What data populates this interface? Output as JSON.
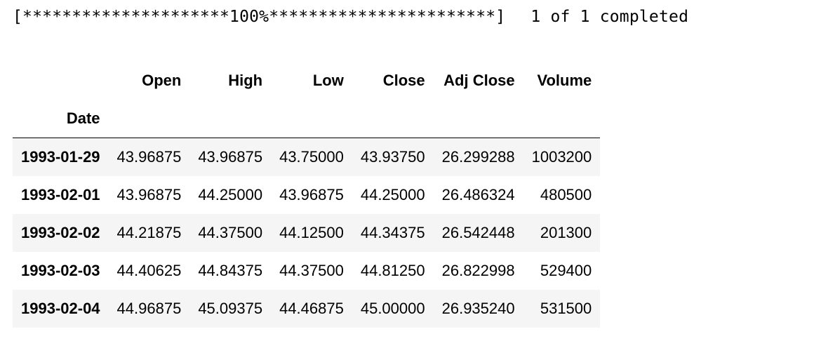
{
  "progress": {
    "bar_text": "[*********************100%***********************]",
    "status_text": "1 of 1 completed"
  },
  "table": {
    "index_name": "Date",
    "columns": [
      "Open",
      "High",
      "Low",
      "Close",
      "Adj Close",
      "Volume"
    ],
    "rows": [
      {
        "date": "1993-01-29",
        "values": [
          "43.96875",
          "43.96875",
          "43.75000",
          "43.93750",
          "26.299288",
          "1003200"
        ]
      },
      {
        "date": "1993-02-01",
        "values": [
          "43.96875",
          "44.25000",
          "43.96875",
          "44.25000",
          "26.486324",
          "480500"
        ]
      },
      {
        "date": "1993-02-02",
        "values": [
          "44.21875",
          "44.37500",
          "44.12500",
          "44.34375",
          "26.542448",
          "201300"
        ]
      },
      {
        "date": "1993-02-03",
        "values": [
          "44.40625",
          "44.84375",
          "44.37500",
          "44.81250",
          "26.822998",
          "529400"
        ]
      },
      {
        "date": "1993-02-04",
        "values": [
          "44.96875",
          "45.09375",
          "44.46875",
          "45.00000",
          "26.935240",
          "531500"
        ]
      }
    ]
  }
}
